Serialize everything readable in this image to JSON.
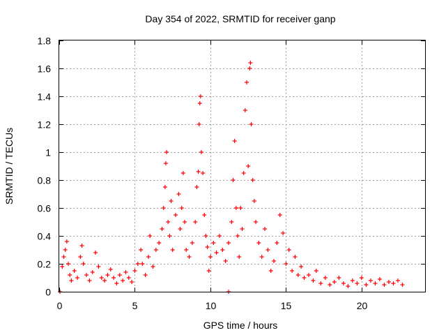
{
  "chart_data": {
    "type": "scatter",
    "title": "Day 354 of 2022, SRMTID for receiver ganp",
    "xlabel": "GPS time / hours",
    "ylabel": "SRMTID / TECUs",
    "xlim": [
      0,
      24.2
    ],
    "ylim": [
      0,
      1.8
    ],
    "x_ticks": [
      0,
      5,
      10,
      15,
      20
    ],
    "x_tick_labels": [
      "0",
      "5",
      "10",
      "15",
      "20"
    ],
    "y_ticks": [
      0,
      0.2,
      0.4,
      0.6,
      0.8,
      1.0,
      1.2,
      1.4,
      1.6,
      1.8
    ],
    "y_tick_labels": [
      "0",
      "0.2",
      "0.4",
      "0.6",
      "0.8",
      "1",
      "1.2",
      "1.4",
      "1.6",
      "1.8"
    ],
    "grid": true,
    "marker": "+",
    "color": "#ff0000",
    "series": [
      {
        "name": "SRMTID",
        "points": [
          [
            0.05,
            0.0
          ],
          [
            11.2,
            0.0
          ],
          [
            0.2,
            0.18
          ],
          [
            0.3,
            0.25
          ],
          [
            0.4,
            0.3
          ],
          [
            0.5,
            0.36
          ],
          [
            0.6,
            0.2
          ],
          [
            0.7,
            0.12
          ],
          [
            0.8,
            0.08
          ],
          [
            1.0,
            0.15
          ],
          [
            1.2,
            0.1
          ],
          [
            1.4,
            0.25
          ],
          [
            1.5,
            0.33
          ],
          [
            1.6,
            0.2
          ],
          [
            1.8,
            0.12
          ],
          [
            2.0,
            0.08
          ],
          [
            2.2,
            0.14
          ],
          [
            2.4,
            0.28
          ],
          [
            2.6,
            0.18
          ],
          [
            2.8,
            0.1
          ],
          [
            3.0,
            0.08
          ],
          [
            3.2,
            0.12
          ],
          [
            3.4,
            0.16
          ],
          [
            3.6,
            0.1
          ],
          [
            3.8,
            0.06
          ],
          [
            4.0,
            0.12
          ],
          [
            4.2,
            0.08
          ],
          [
            4.4,
            0.14
          ],
          [
            4.6,
            0.1
          ],
          [
            4.8,
            0.07
          ],
          [
            5.0,
            0.15
          ],
          [
            5.2,
            0.2
          ],
          [
            5.4,
            0.3
          ],
          [
            5.5,
            0.2
          ],
          [
            5.7,
            0.12
          ],
          [
            5.9,
            0.25
          ],
          [
            6.0,
            0.4
          ],
          [
            6.2,
            0.18
          ],
          [
            6.4,
            0.3
          ],
          [
            6.6,
            0.35
          ],
          [
            6.8,
            0.45
          ],
          [
            6.9,
            0.6
          ],
          [
            7.0,
            0.75
          ],
          [
            7.05,
            0.92
          ],
          [
            7.1,
            1.0
          ],
          [
            7.2,
            0.5
          ],
          [
            7.3,
            0.4
          ],
          [
            7.4,
            0.65
          ],
          [
            7.5,
            0.3
          ],
          [
            7.7,
            0.55
          ],
          [
            7.9,
            0.7
          ],
          [
            8.0,
            0.45
          ],
          [
            8.1,
            0.6
          ],
          [
            8.2,
            0.85
          ],
          [
            8.3,
            0.5
          ],
          [
            8.4,
            0.3
          ],
          [
            8.6,
            0.25
          ],
          [
            8.8,
            0.35
          ],
          [
            9.0,
            0.5
          ],
          [
            9.1,
            0.75
          ],
          [
            9.2,
            0.86
          ],
          [
            9.25,
            1.2
          ],
          [
            9.3,
            1.35
          ],
          [
            9.35,
            1.4
          ],
          [
            9.4,
            1.0
          ],
          [
            9.5,
            0.85
          ],
          [
            9.6,
            0.55
          ],
          [
            9.7,
            0.4
          ],
          [
            9.8,
            0.32
          ],
          [
            9.9,
            0.15
          ],
          [
            10.0,
            0.25
          ],
          [
            10.2,
            0.35
          ],
          [
            10.4,
            0.28
          ],
          [
            10.6,
            0.4
          ],
          [
            10.8,
            0.3
          ],
          [
            11.0,
            0.22
          ],
          [
            11.2,
            0.35
          ],
          [
            11.4,
            0.5
          ],
          [
            11.5,
            0.8
          ],
          [
            11.6,
            1.08
          ],
          [
            11.7,
            0.6
          ],
          [
            11.8,
            0.4
          ],
          [
            11.9,
            0.25
          ],
          [
            12.0,
            0.6
          ],
          [
            12.1,
            0.45
          ],
          [
            12.2,
            0.85
          ],
          [
            12.3,
            1.3
          ],
          [
            12.4,
            1.5
          ],
          [
            12.5,
            0.9
          ],
          [
            12.6,
            1.6
          ],
          [
            12.65,
            1.64
          ],
          [
            12.7,
            1.2
          ],
          [
            12.8,
            0.8
          ],
          [
            12.9,
            0.65
          ],
          [
            13.0,
            0.5
          ],
          [
            13.2,
            0.35
          ],
          [
            13.4,
            0.25
          ],
          [
            13.6,
            0.45
          ],
          [
            13.8,
            0.3
          ],
          [
            14.0,
            0.15
          ],
          [
            14.2,
            0.22
          ],
          [
            14.4,
            0.35
          ],
          [
            14.6,
            0.55
          ],
          [
            14.8,
            0.42
          ],
          [
            15.0,
            0.2
          ],
          [
            15.2,
            0.3
          ],
          [
            15.4,
            0.15
          ],
          [
            15.6,
            0.25
          ],
          [
            15.8,
            0.12
          ],
          [
            16.0,
            0.18
          ],
          [
            16.2,
            0.1
          ],
          [
            16.5,
            0.12
          ],
          [
            16.8,
            0.08
          ],
          [
            17.0,
            0.15
          ],
          [
            17.3,
            0.06
          ],
          [
            17.6,
            0.1
          ],
          [
            17.9,
            0.05
          ],
          [
            18.2,
            0.07
          ],
          [
            18.5,
            0.1
          ],
          [
            18.8,
            0.06
          ],
          [
            19.1,
            0.04
          ],
          [
            19.4,
            0.08
          ],
          [
            19.7,
            0.06
          ],
          [
            20.0,
            0.1
          ],
          [
            20.3,
            0.05
          ],
          [
            20.6,
            0.08
          ],
          [
            20.9,
            0.06
          ],
          [
            21.2,
            0.09
          ],
          [
            21.5,
            0.05
          ],
          [
            21.8,
            0.07
          ],
          [
            22.1,
            0.06
          ],
          [
            22.4,
            0.08
          ],
          [
            22.7,
            0.05
          ]
        ]
      }
    ]
  }
}
